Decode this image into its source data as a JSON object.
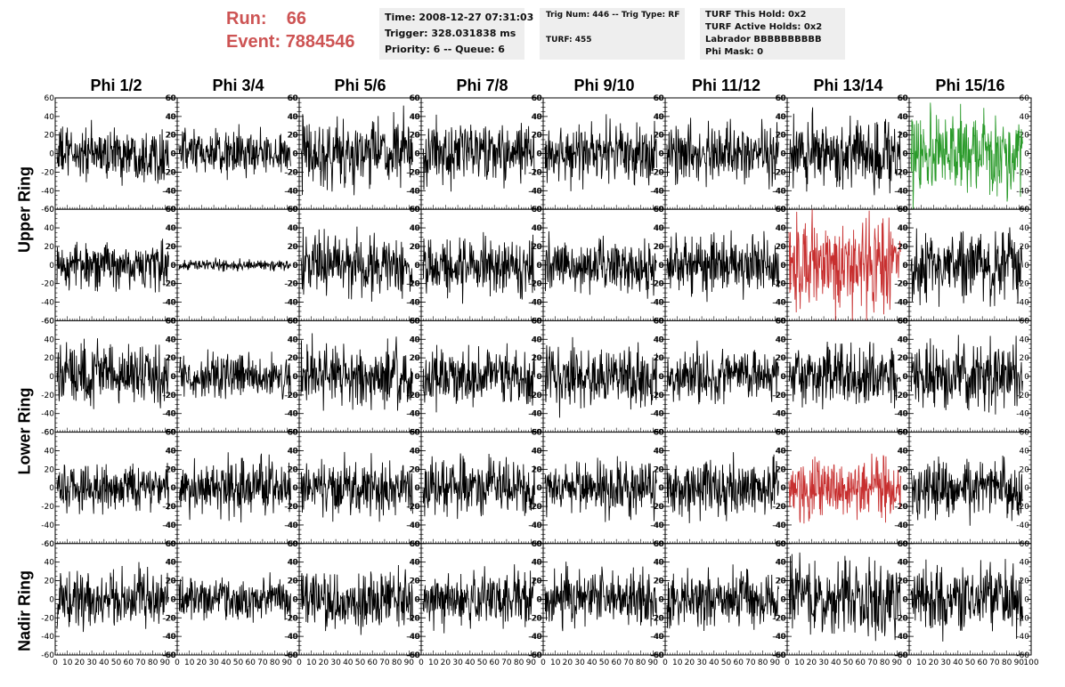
{
  "header": {
    "run_label": "Run:",
    "run_value": "66",
    "event_label": "Event:",
    "event_value": "7884546"
  },
  "info_box_1": {
    "time": "Time: 2008-12-27 07:31:03",
    "trigger": "Trigger: 328.031838 ms",
    "priority": "Priority: 6 -- Queue: 6"
  },
  "info_box_2": {
    "trig": "Trig Num: 446 -- Trig Type: RF",
    "turf": "TURF: 455"
  },
  "info_box_3": {
    "hold": "TURF This Hold: 0x2",
    "active": "TURF Active Holds: 0x2",
    "labrador": "Labrador BBBBBBBBBB",
    "phimask": "Phi Mask: 0"
  },
  "columns": [
    "Phi 1/2",
    "Phi 3/4",
    "Phi 5/6",
    "Phi 7/8",
    "Phi 9/10",
    "Phi 11/12",
    "Phi 13/14",
    "Phi 15/16"
  ],
  "rings": {
    "upper": "Upper Ring",
    "lower": "Lower Ring",
    "nadir": "Nadir Ring"
  },
  "axes": {
    "y_ticks": [
      "-60",
      "-40",
      "-20",
      "0",
      "20",
      "40",
      "60"
    ],
    "ylim": [
      -60,
      60
    ],
    "x_ticks": [
      "0",
      "10",
      "20",
      "30",
      "40",
      "50",
      "60",
      "70",
      "80",
      "90",
      "100"
    ],
    "xlim": [
      0,
      100
    ]
  },
  "colors": {
    "trace_default": "#000000",
    "trace_highlight_green": "#2a9a2a",
    "trace_highlight_red": "#c72f2f",
    "run_text": "#cd5454",
    "info_bg": "#eeeeee"
  },
  "chart_data": {
    "type": "line",
    "rows": 5,
    "cols": 8,
    "samples_per_trace": 260,
    "panels": [
      {
        "row": 0,
        "col": 0,
        "amplitude": 14,
        "color": "#000000"
      },
      {
        "row": 0,
        "col": 1,
        "amplitude": 12,
        "color": "#000000"
      },
      {
        "row": 0,
        "col": 2,
        "amplitude": 18,
        "color": "#000000"
      },
      {
        "row": 0,
        "col": 3,
        "amplitude": 16,
        "color": "#000000"
      },
      {
        "row": 0,
        "col": 4,
        "amplitude": 17,
        "color": "#000000"
      },
      {
        "row": 0,
        "col": 5,
        "amplitude": 15,
        "color": "#000000"
      },
      {
        "row": 0,
        "col": 6,
        "amplitude": 18,
        "color": "#000000"
      },
      {
        "row": 0,
        "col": 7,
        "amplitude": 22,
        "color": "#2a9a2a"
      },
      {
        "row": 1,
        "col": 0,
        "amplitude": 14,
        "color": "#000000"
      },
      {
        "row": 1,
        "col": 1,
        "amplitude": 3,
        "color": "#000000"
      },
      {
        "row": 1,
        "col": 2,
        "amplitude": 16,
        "color": "#000000"
      },
      {
        "row": 1,
        "col": 3,
        "amplitude": 16,
        "color": "#000000"
      },
      {
        "row": 1,
        "col": 4,
        "amplitude": 14,
        "color": "#000000"
      },
      {
        "row": 1,
        "col": 5,
        "amplitude": 16,
        "color": "#000000"
      },
      {
        "row": 1,
        "col": 6,
        "amplitude": 24,
        "color": "#c72f2f"
      },
      {
        "row": 1,
        "col": 7,
        "amplitude": 18,
        "color": "#000000"
      },
      {
        "row": 2,
        "col": 0,
        "amplitude": 16,
        "color": "#000000"
      },
      {
        "row": 2,
        "col": 1,
        "amplitude": 12,
        "color": "#000000"
      },
      {
        "row": 2,
        "col": 2,
        "amplitude": 17,
        "color": "#000000"
      },
      {
        "row": 2,
        "col": 3,
        "amplitude": 15,
        "color": "#000000"
      },
      {
        "row": 2,
        "col": 4,
        "amplitude": 16,
        "color": "#000000"
      },
      {
        "row": 2,
        "col": 5,
        "amplitude": 14,
        "color": "#000000"
      },
      {
        "row": 2,
        "col": 6,
        "amplitude": 16,
        "color": "#000000"
      },
      {
        "row": 2,
        "col": 7,
        "amplitude": 17,
        "color": "#000000"
      },
      {
        "row": 3,
        "col": 0,
        "amplitude": 12,
        "color": "#000000"
      },
      {
        "row": 3,
        "col": 1,
        "amplitude": 14,
        "color": "#000000"
      },
      {
        "row": 3,
        "col": 2,
        "amplitude": 15,
        "color": "#000000"
      },
      {
        "row": 3,
        "col": 3,
        "amplitude": 15,
        "color": "#000000"
      },
      {
        "row": 3,
        "col": 4,
        "amplitude": 14,
        "color": "#000000"
      },
      {
        "row": 3,
        "col": 5,
        "amplitude": 15,
        "color": "#000000"
      },
      {
        "row": 3,
        "col": 6,
        "amplitude": 16,
        "color": "#c72f2f"
      },
      {
        "row": 3,
        "col": 7,
        "amplitude": 16,
        "color": "#000000"
      },
      {
        "row": 4,
        "col": 0,
        "amplitude": 15,
        "color": "#000000"
      },
      {
        "row": 4,
        "col": 1,
        "amplitude": 11,
        "color": "#000000"
      },
      {
        "row": 4,
        "col": 2,
        "amplitude": 15,
        "color": "#000000"
      },
      {
        "row": 4,
        "col": 3,
        "amplitude": 14,
        "color": "#000000"
      },
      {
        "row": 4,
        "col": 4,
        "amplitude": 15,
        "color": "#000000"
      },
      {
        "row": 4,
        "col": 5,
        "amplitude": 14,
        "color": "#000000"
      },
      {
        "row": 4,
        "col": 6,
        "amplitude": 20,
        "color": "#000000"
      },
      {
        "row": 4,
        "col": 7,
        "amplitude": 17,
        "color": "#000000"
      }
    ]
  }
}
